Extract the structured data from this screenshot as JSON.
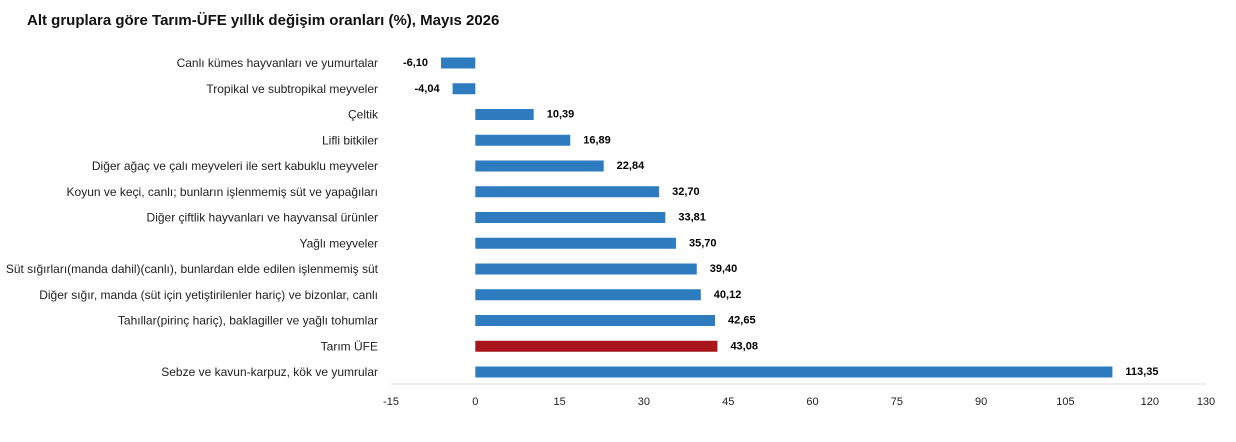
{
  "chart_data": {
    "type": "bar",
    "orientation": "horizontal",
    "title": "Alt gruplara göre Tarım-ÜFE yıllık değişim oranları (%), Mayıs 2026",
    "categories": [
      "Canlı kümes hayvanları ve yumurtalar",
      "Tropikal ve subtropikal meyveler",
      "Çeltik",
      "Lifli bitkiler",
      "Diğer ağaç ve çalı meyveleri ile sert kabuklu meyveler",
      "Koyun ve keçi, canlı; bunların işlenmemiş süt ve yapağıları",
      "Diğer çiftlik hayvanları ve hayvansal ürünler",
      "Yağlı meyveler",
      "Süt sığırları(manda dahil)(canlı), bunlardan elde edilen işlenmemiş süt",
      "Diğer sığır, manda (süt için yetiştirilenler hariç) ve bizonlar, canlı",
      "Tahıllar(pirinç hariç), baklagiller ve yağlı tohumlar",
      "Tarım ÜFE",
      "Sebze ve kavun-karpuz, kök ve yumrular"
    ],
    "values": [
      -6.1,
      -4.04,
      10.39,
      16.89,
      22.84,
      32.7,
      33.81,
      35.7,
      39.4,
      40.12,
      42.65,
      43.08,
      113.35
    ],
    "value_labels": [
      "-6,10",
      "-4,04",
      "10,39",
      "16,89",
      "22,84",
      "32,70",
      "33,81",
      "35,70",
      "39,40",
      "40,12",
      "42,65",
      "43,08",
      "113,35"
    ],
    "highlight_category": "Tarım ÜFE",
    "xlim": [
      -15,
      130
    ],
    "xticks": [
      -15,
      0,
      15,
      30,
      45,
      60,
      75,
      90,
      105,
      120,
      130
    ],
    "xlabel": "",
    "ylabel": "",
    "grid": false,
    "legend": "none",
    "colors": {
      "bar": "#2E7BBF",
      "highlight": "#A6161C",
      "axis": "#d9d9d9"
    }
  }
}
